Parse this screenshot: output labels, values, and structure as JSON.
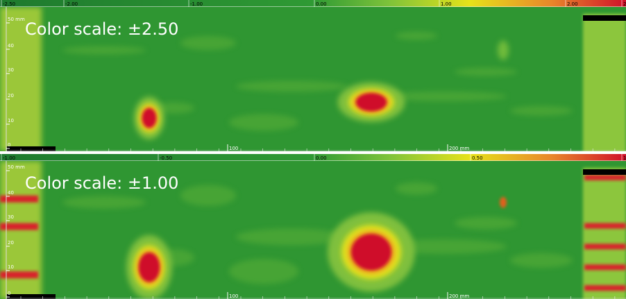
{
  "panels": [
    {
      "colorbar_ticks": [
        "-2.50",
        "-2.00",
        "-1.00",
        "0.00",
        "1.00",
        "2.00",
        "2"
      ],
      "caption": "Color scale: ±2.50",
      "y_ticks": [
        "50 mm",
        "40",
        "30",
        "20",
        "10",
        "0"
      ],
      "x_ticks": [
        "100",
        "200 mm"
      ]
    },
    {
      "colorbar_ticks": [
        "-1.00",
        "-0.50",
        "0.00",
        "0.50",
        "1"
      ],
      "caption": "Color scale: ±1.00",
      "y_ticks": [
        "50 mm",
        "40",
        "30",
        "20",
        "10",
        "0"
      ],
      "x_ticks": [
        "100",
        "200 mm"
      ]
    }
  ]
}
